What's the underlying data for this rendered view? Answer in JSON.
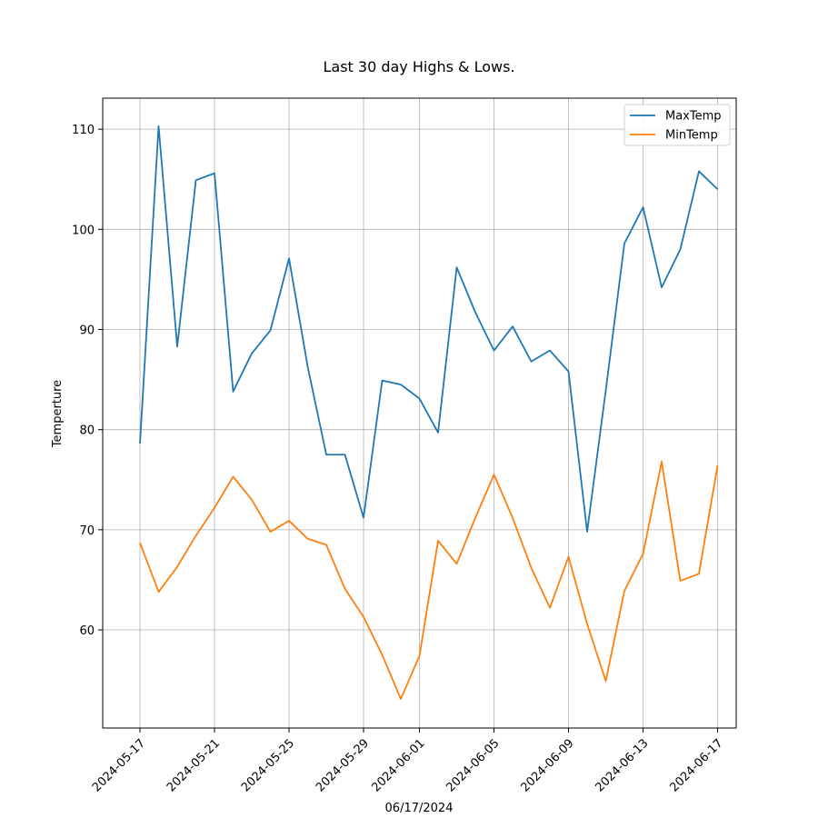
{
  "chart_data": {
    "type": "line",
    "title": "Last 30 day Highs & Lows.",
    "xlabel": "06/17/2024",
    "ylabel": "Temperture",
    "grid": true,
    "legend_position": "top-right",
    "x": [
      "2024-05-17",
      "2024-05-18",
      "2024-05-19",
      "2024-05-20",
      "2024-05-21",
      "2024-05-22",
      "2024-05-23",
      "2024-05-24",
      "2024-05-25",
      "2024-05-26",
      "2024-05-27",
      "2024-05-28",
      "2024-05-29",
      "2024-05-30",
      "2024-05-31",
      "2024-06-01",
      "2024-06-02",
      "2024-06-03",
      "2024-06-04",
      "2024-06-05",
      "2024-06-06",
      "2024-06-07",
      "2024-06-08",
      "2024-06-09",
      "2024-06-10",
      "2024-06-11",
      "2024-06-12",
      "2024-06-13",
      "2024-06-14",
      "2024-06-15",
      "2024-06-16",
      "2024-06-17"
    ],
    "x_ticks": [
      "2024-05-17",
      "2024-05-21",
      "2024-05-25",
      "2024-05-29",
      "2024-06-01",
      "2024-06-05",
      "2024-06-09",
      "2024-06-13",
      "2024-06-17"
    ],
    "x_range": [
      "2024-05-15",
      "2024-06-18"
    ],
    "ylim": [
      50.2,
      113.1
    ],
    "y_ticks": [
      60,
      70,
      80,
      90,
      100,
      110
    ],
    "series": [
      {
        "name": "MaxTemp",
        "color": "#1f77b4",
        "values": [
          78.6,
          110.3,
          88.3,
          104.9,
          105.6,
          83.8,
          87.6,
          89.9,
          97.1,
          86.3,
          77.5,
          77.5,
          71.2,
          84.9,
          84.5,
          83.1,
          79.7,
          96.2,
          91.7,
          87.9,
          90.3,
          86.8,
          87.9,
          85.8,
          69.8,
          83.9,
          98.6,
          102.2,
          94.2,
          98.0,
          105.8,
          104.0
        ]
      },
      {
        "name": "MinTemp",
        "color": "#ff7f0e",
        "values": [
          68.7,
          63.8,
          66.3,
          69.4,
          72.2,
          75.3,
          73.0,
          69.8,
          70.9,
          69.1,
          68.5,
          64.1,
          61.3,
          57.5,
          53.1,
          57.4,
          68.9,
          66.6,
          71.2,
          75.5,
          71.2,
          66.2,
          62.2,
          67.3,
          60.6,
          54.9,
          63.9,
          67.6,
          76.8,
          64.9,
          65.6,
          76.4
        ]
      }
    ]
  }
}
